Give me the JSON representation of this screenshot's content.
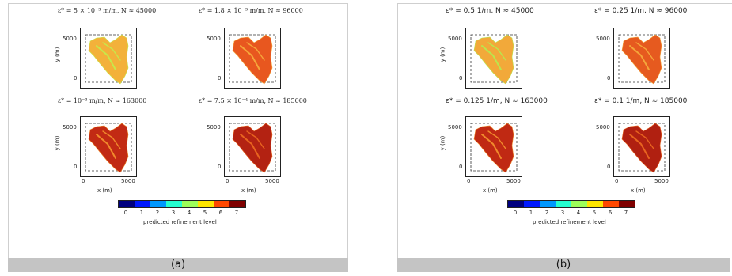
{
  "panels": [
    {
      "id": "a",
      "caption": "(a)",
      "subplots": [
        {
          "title": "ε* = 5 × 10⁻³ m/m, N ≈ 45000",
          "fill": "#f3b13a",
          "accent": "#c7e84a"
        },
        {
          "title": "ε* = 1.8 × 10⁻³ m/m, N ≈ 96000",
          "fill": "#e8571f",
          "accent": "#f5a63a"
        },
        {
          "title": "ε* = 10⁻³ m/m, N ≈ 163000",
          "fill": "#c22a14",
          "accent": "#f08a2c"
        },
        {
          "title": "ε* = 7.5 × 10⁻⁴ m/m, N ≈ 185000",
          "fill": "#b32212",
          "accent": "#e8641f"
        }
      ]
    },
    {
      "id": "b",
      "caption": "(b)",
      "subplots": [
        {
          "title": "ε* = 0.5 1/m, N ≈ 45000",
          "fill": "#f2a93a",
          "accent": "#b9e74d"
        },
        {
          "title": "ε* = 0.25 1/m, N ≈ 96000",
          "fill": "#e65a1f",
          "accent": "#f4a53a"
        },
        {
          "title": "ε* = 0.125 1/m, N ≈ 163000",
          "fill": "#c02913",
          "accent": "#f08a2c"
        },
        {
          "title": "ε* = 0.1 1/m, N ≈ 185000",
          "fill": "#b02011",
          "accent": "#e8641f"
        }
      ]
    }
  ],
  "axes": {
    "ylabel": "y (m)",
    "xlabel": "x (m)",
    "ytick_top": "5000",
    "ytick_bottom": "0",
    "xtick_left": "0",
    "xtick_right": "5000"
  },
  "colorbar": {
    "label": "predicted refinement level",
    "ticks": [
      "0",
      "1",
      "2",
      "3",
      "4",
      "5",
      "6",
      "7"
    ],
    "colors": [
      "#00007f",
      "#0019ff",
      "#0098ff",
      "#26ffd0",
      "#9dff5a",
      "#ffe600",
      "#ff4800",
      "#7f0000"
    ]
  }
}
